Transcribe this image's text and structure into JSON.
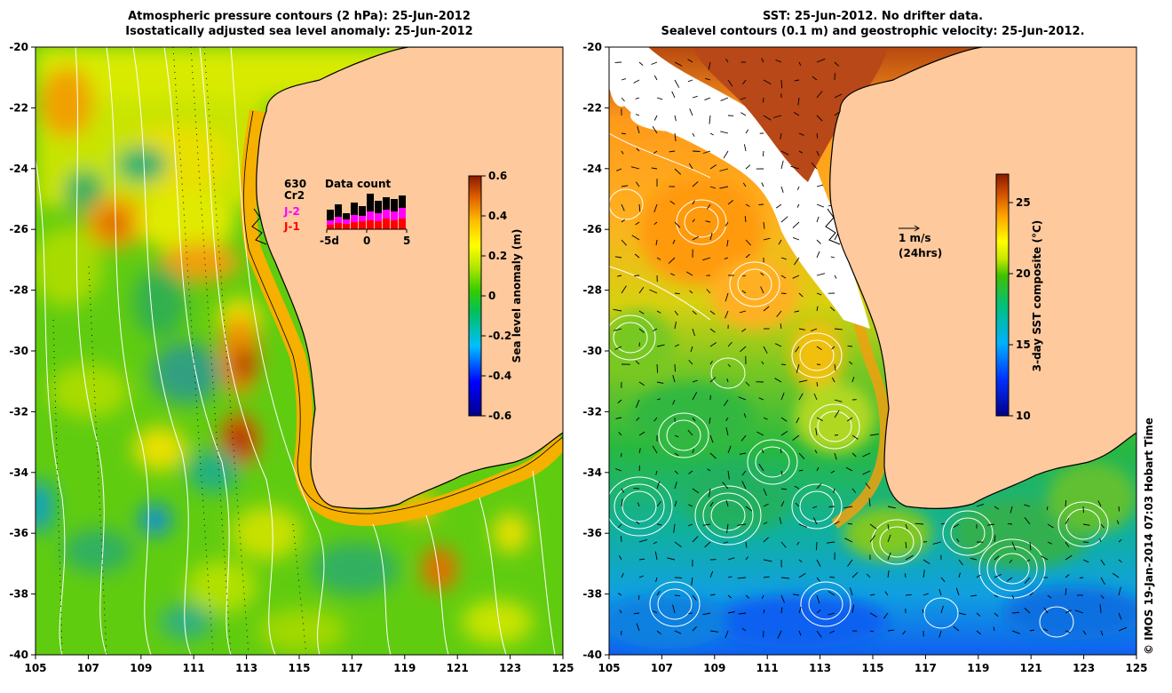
{
  "left_panel": {
    "title_line1": "Atmospheric pressure contours (2 hPa): 25-Jun-2012",
    "title_line2": "Isostatically adjusted sea level anomaly: 25-Jun-2012",
    "colorbar": {
      "label": "Sea level anomaly (m)",
      "ticks": [
        "0.6",
        "0.4",
        "0.2",
        "0",
        "-0.2",
        "-0.4",
        "-0.6"
      ],
      "range": [
        -0.6,
        0.6
      ]
    },
    "data_count": {
      "title": "Data count",
      "top_number": "630",
      "satellites": [
        {
          "name": "Cr2",
          "color": "#000000"
        },
        {
          "name": "J-2",
          "color": "#ff00ff"
        },
        {
          "name": "J-1",
          "color": "#ff0000"
        }
      ],
      "x_ticks": [
        "-5d",
        "0",
        "5"
      ]
    }
  },
  "right_panel": {
    "title_line1": "SST: 25-Jun-2012. No drifter data.",
    "title_line2": "Sealevel contours (0.1 m) and geostrophic velocity: 25-Jun-2012.",
    "colorbar": {
      "label": "3-day SST composite (°C)",
      "ticks": [
        "25",
        "20",
        "15",
        "10"
      ],
      "range": [
        10,
        27
      ]
    },
    "velocity_scale": {
      "speed": "1 m/s",
      "period": "(24hrs)"
    }
  },
  "axes": {
    "x_ticks": [
      "105",
      "107",
      "109",
      "111",
      "113",
      "115",
      "117",
      "119",
      "121",
      "123",
      "125"
    ],
    "y_ticks": [
      "-20",
      "-22",
      "-24",
      "-26",
      "-28",
      "-30",
      "-32",
      "-34",
      "-36",
      "-38",
      "-40"
    ],
    "lon_range": [
      105,
      125
    ],
    "lat_range": [
      -40,
      -20
    ]
  },
  "credit": "© IMOS 19-Jan-2014 07:03 Hobart Time",
  "colors": {
    "land": "#fdc99d",
    "coast": "#000000",
    "contour": "#ffffff"
  }
}
